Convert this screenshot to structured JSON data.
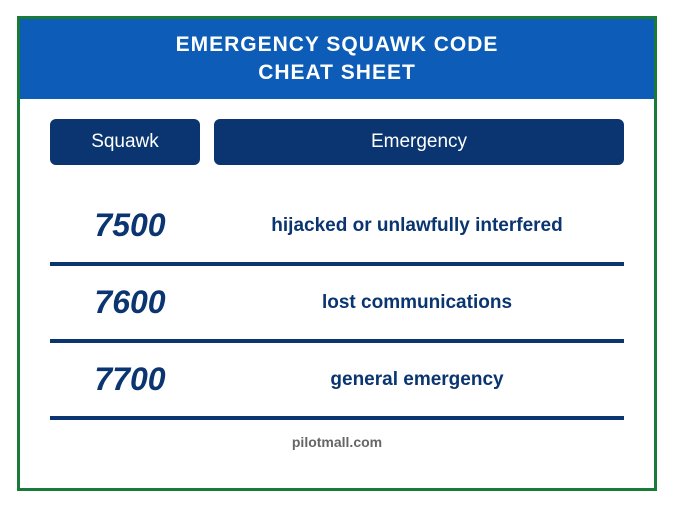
{
  "title": {
    "line1": "EMERGENCY SQUAWK CODE",
    "line2": "CHEAT SHEET",
    "background_color": "#0d5db8",
    "text_color": "#ffffff",
    "font_size": 21
  },
  "border_color": "#1a7a3a",
  "table": {
    "type": "table",
    "header_background": "#0a3570",
    "header_text_color": "#ffffff",
    "header_font_size": 19,
    "row_border_color": "#0a3570",
    "row_border_width": 4,
    "code_color": "#0a3570",
    "code_font_size": 32,
    "code_font_weight": 900,
    "desc_color": "#0a3570",
    "desc_font_size": 19,
    "columns": [
      {
        "label": "Squawk",
        "width": 150
      },
      {
        "label": "Emergency",
        "width": "flex"
      }
    ],
    "rows": [
      {
        "code": "7500",
        "desc": "hijacked or unlawfully interfered"
      },
      {
        "code": "7600",
        "desc": "lost communications"
      },
      {
        "code": "7700",
        "desc": "general emergency"
      }
    ]
  },
  "footer": {
    "text": "pilotmall.com",
    "color": "#666666",
    "font_size": 14
  }
}
